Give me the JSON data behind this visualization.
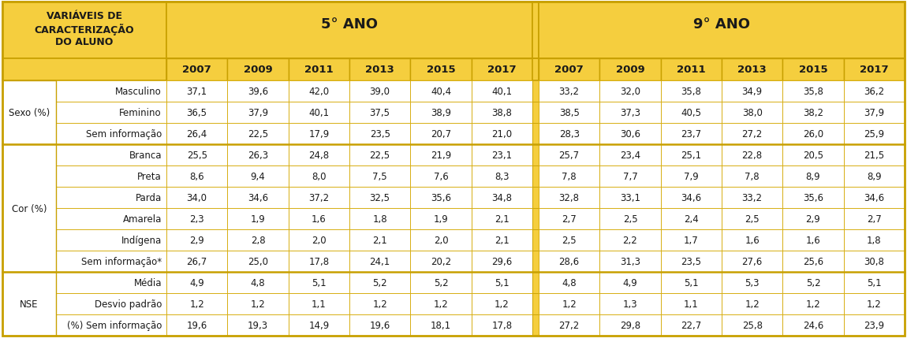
{
  "title_cell": "VARIÁVEIS DE\nCARACTERIZAÇÃO\nDO ALUNO",
  "col_group1": "5° ANO",
  "col_group2": "9° ANO",
  "years": [
    "2007",
    "2009",
    "2011",
    "2013",
    "2015",
    "2017"
  ],
  "row_groups": [
    {
      "group_label": "Sexo (%)",
      "rows": [
        {
          "label": "Masculino",
          "ano5": [
            "37,1",
            "39,6",
            "42,0",
            "39,0",
            "40,4",
            "40,1"
          ],
          "ano9": [
            "33,2",
            "32,0",
            "35,8",
            "34,9",
            "35,8",
            "36,2"
          ]
        },
        {
          "label": "Feminino",
          "ano5": [
            "36,5",
            "37,9",
            "40,1",
            "37,5",
            "38,9",
            "38,8"
          ],
          "ano9": [
            "38,5",
            "37,3",
            "40,5",
            "38,0",
            "38,2",
            "37,9"
          ]
        },
        {
          "label": "Sem informação",
          "ano5": [
            "26,4",
            "22,5",
            "17,9",
            "23,5",
            "20,7",
            "21,0"
          ],
          "ano9": [
            "28,3",
            "30,6",
            "23,7",
            "27,2",
            "26,0",
            "25,9"
          ]
        }
      ]
    },
    {
      "group_label": "Cor (%)",
      "rows": [
        {
          "label": "Branca",
          "ano5": [
            "25,5",
            "26,3",
            "24,8",
            "22,5",
            "21,9",
            "23,1"
          ],
          "ano9": [
            "25,7",
            "23,4",
            "25,1",
            "22,8",
            "20,5",
            "21,5"
          ]
        },
        {
          "label": "Preta",
          "ano5": [
            "8,6",
            "9,4",
            "8,0",
            "7,5",
            "7,6",
            "8,3"
          ],
          "ano9": [
            "7,8",
            "7,7",
            "7,9",
            "7,8",
            "8,9",
            "8,9"
          ]
        },
        {
          "label": "Parda",
          "ano5": [
            "34,0",
            "34,6",
            "37,2",
            "32,5",
            "35,6",
            "34,8"
          ],
          "ano9": [
            "32,8",
            "33,1",
            "34,6",
            "33,2",
            "35,6",
            "34,6"
          ]
        },
        {
          "label": "Amarela",
          "ano5": [
            "2,3",
            "1,9",
            "1,6",
            "1,8",
            "1,9",
            "2,1"
          ],
          "ano9": [
            "2,7",
            "2,5",
            "2,4",
            "2,5",
            "2,9",
            "2,7"
          ]
        },
        {
          "label": "Indígena",
          "ano5": [
            "2,9",
            "2,8",
            "2,0",
            "2,1",
            "2,0",
            "2,1"
          ],
          "ano9": [
            "2,5",
            "2,2",
            "1,7",
            "1,6",
            "1,6",
            "1,8"
          ]
        },
        {
          "label": "Sem informação*",
          "ano5": [
            "26,7",
            "25,0",
            "17,8",
            "24,1",
            "20,2",
            "29,6"
          ],
          "ano9": [
            "28,6",
            "31,3",
            "23,5",
            "27,6",
            "25,6",
            "30,8"
          ]
        }
      ]
    },
    {
      "group_label": "NSE",
      "rows": [
        {
          "label": "Média",
          "ano5": [
            "4,9",
            "4,8",
            "5,1",
            "5,2",
            "5,2",
            "5,1"
          ],
          "ano9": [
            "4,8",
            "4,9",
            "5,1",
            "5,3",
            "5,2",
            "5,1"
          ]
        },
        {
          "label": "Desvio padrão",
          "ano5": [
            "1,2",
            "1,2",
            "1,1",
            "1,2",
            "1,2",
            "1,2"
          ],
          "ano9": [
            "1,2",
            "1,3",
            "1,1",
            "1,2",
            "1,2",
            "1,2"
          ]
        },
        {
          "label": "(%) Sem informação",
          "ano5": [
            "19,6",
            "19,3",
            "14,9",
            "19,6",
            "18,1",
            "17,8"
          ],
          "ano9": [
            "27,2",
            "29,8",
            "22,7",
            "25,8",
            "24,6",
            "23,9"
          ]
        }
      ]
    }
  ],
  "col_header_bg": "#F5CE3E",
  "row_border": "#D4A800",
  "group_border": "#C8A000",
  "white": "#FFFFFF",
  "text_color": "#1A1A1A",
  "header_text_color": "#1A1A1A"
}
